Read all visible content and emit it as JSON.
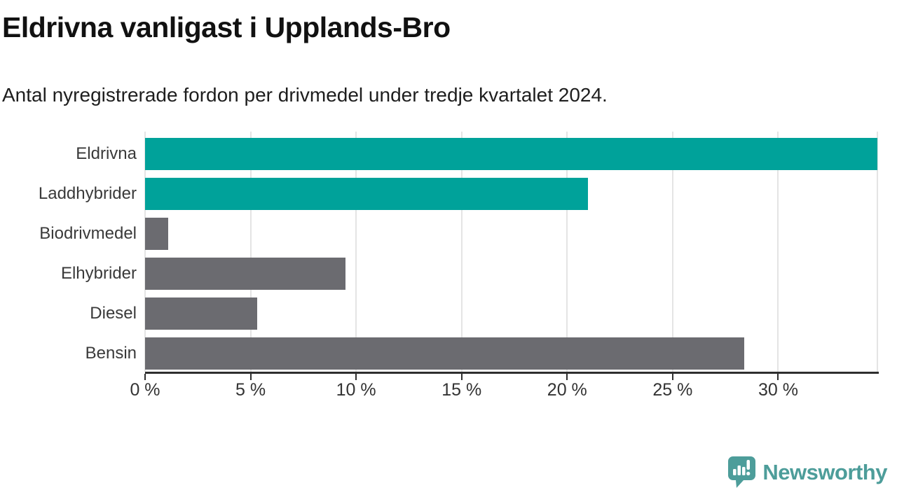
{
  "header": {
    "title": "Eldrivna vanligast i Upplands-Bro",
    "subtitle": "Antal nyregistrerade fordon per drivmedel under tredje kvartalet 2024."
  },
  "chart_data": {
    "type": "bar",
    "orientation": "horizontal",
    "title": "Eldrivna vanligast i Upplands-Bro",
    "subtitle": "Antal nyregistrerade fordon per drivmedel under tredje kvartalet 2024.",
    "categories": [
      "Eldrivna",
      "Laddhybrider",
      "Biodrivmedel",
      "Elhybrider",
      "Diesel",
      "Bensin"
    ],
    "values": [
      34.7,
      21.0,
      1.1,
      9.5,
      5.3,
      28.4
    ],
    "unit": "%",
    "bar_colors": [
      "#00a29a",
      "#00a29a",
      "#6b6b70",
      "#6b6b70",
      "#6b6b70",
      "#6b6b70"
    ],
    "highlight_color": "#00a29a",
    "default_color": "#6b6b70",
    "xlabel": "",
    "ylabel": "",
    "xlim": [
      0,
      34.7
    ],
    "x_ticks": [
      0,
      5,
      10,
      15,
      20,
      25,
      30
    ],
    "x_tick_labels": [
      "0 %",
      "5 %",
      "10 %",
      "15 %",
      "20 %",
      "25 %",
      "30 %"
    ],
    "grid": "vertical",
    "legend": "none"
  },
  "branding": {
    "logo_text": "Newsworthy",
    "logo_color": "#4d9d9a"
  }
}
